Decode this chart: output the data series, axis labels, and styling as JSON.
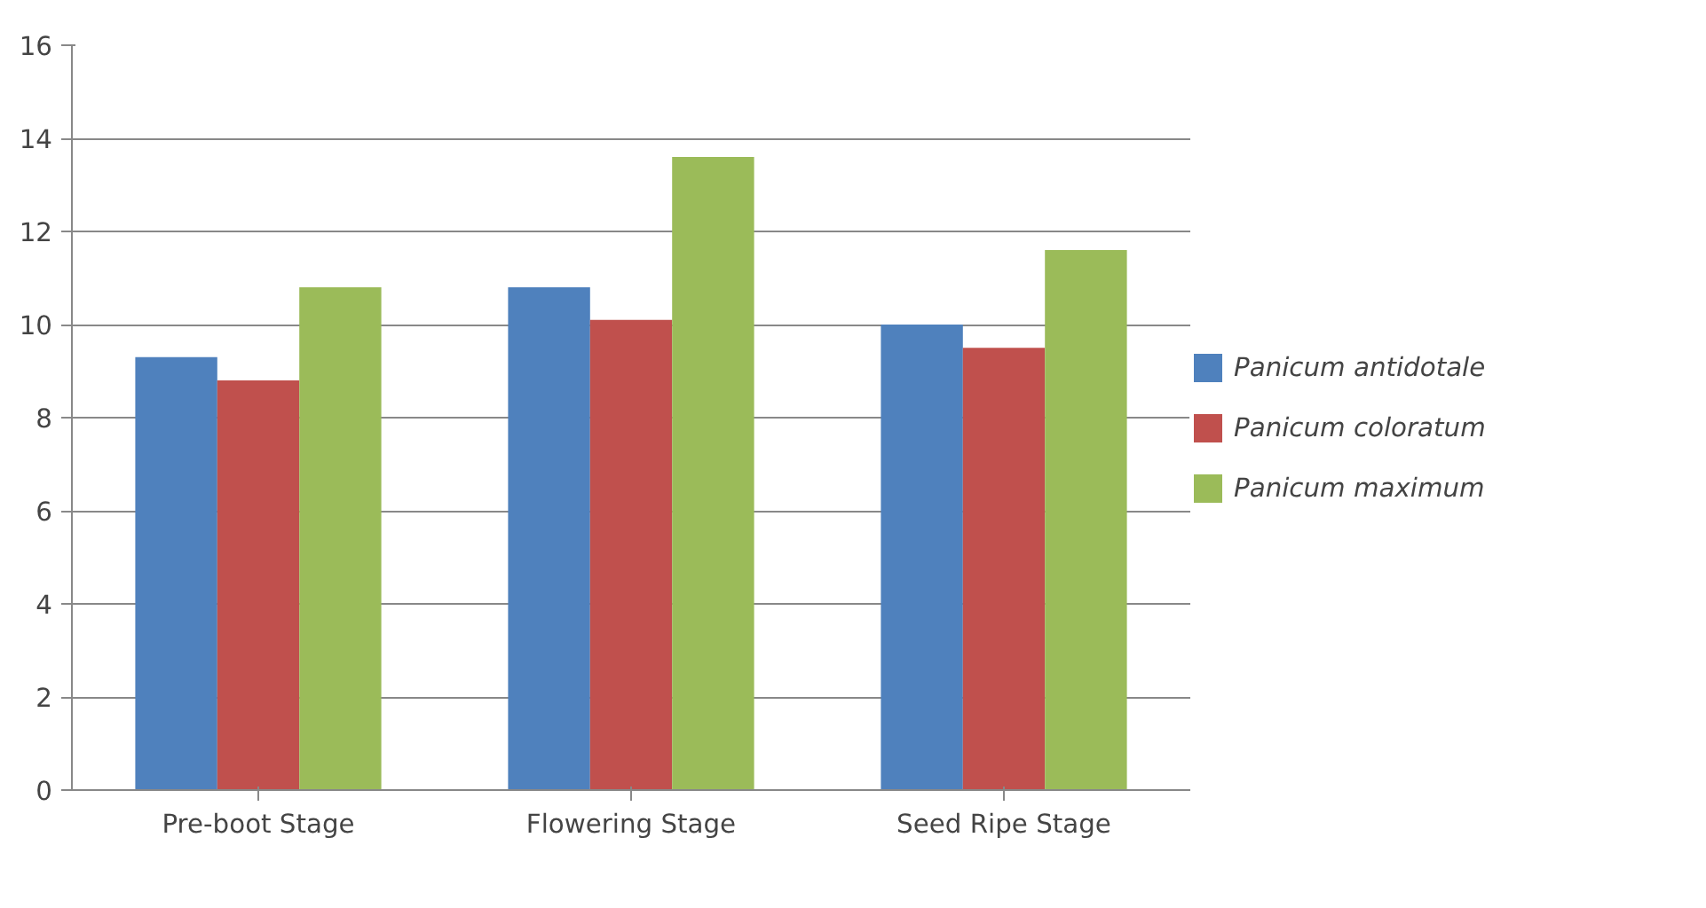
{
  "chart_data": {
    "type": "bar",
    "categories": [
      "Pre-boot Stage",
      "Flowering Stage",
      "Seed Ripe Stage"
    ],
    "series": [
      {
        "name": "Panicum antidotale",
        "color": "#4f81bd",
        "values": [
          9.3,
          10.8,
          10.0
        ]
      },
      {
        "name": "Panicum coloratum",
        "color": "#c0504d",
        "values": [
          8.8,
          10.1,
          9.5
        ]
      },
      {
        "name": "Panicum maximum",
        "color": "#9bbb59",
        "values": [
          10.8,
          13.6,
          11.6
        ]
      }
    ],
    "ylim": [
      0,
      16
    ],
    "yticks": [
      0,
      2,
      4,
      6,
      8,
      10,
      12,
      14,
      16
    ],
    "grid": "y",
    "legend": "right"
  }
}
